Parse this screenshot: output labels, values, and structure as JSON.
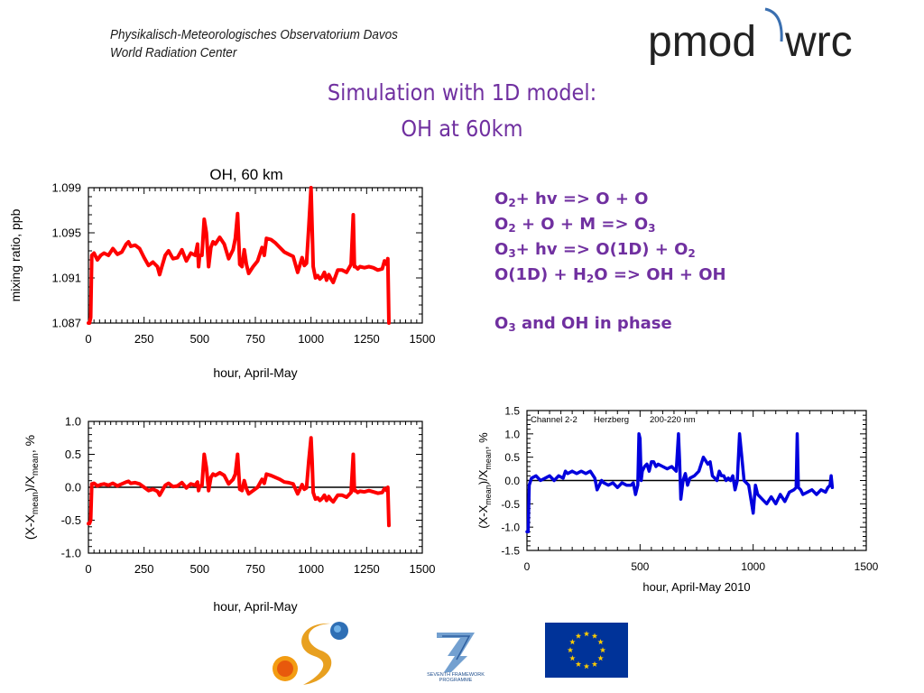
{
  "header": {
    "institution_line1": "Physikalisch-Meteorologisches Observatorium Davos",
    "institution_line2": "World Radiation Center",
    "logo_text_left": "pmod",
    "logo_text_right": "wrc"
  },
  "title": {
    "line1": "Simulation with 1D model:",
    "line2": "OH at 60km"
  },
  "reactions": [
    {
      "parts": [
        [
          "O",
          ""
        ],
        [
          "2",
          "sub"
        ],
        [
          "+ hv  => O + O",
          ""
        ]
      ]
    },
    {
      "parts": [
        [
          "O",
          ""
        ],
        [
          "2",
          "sub"
        ],
        [
          " + O + M => O",
          ""
        ],
        [
          "3",
          "sub"
        ]
      ]
    },
    {
      "parts": [
        [
          "O",
          ""
        ],
        [
          "3",
          "sub"
        ],
        [
          "+ hv  => O(1D) + O",
          ""
        ],
        [
          "2",
          "sub"
        ]
      ]
    },
    {
      "parts": [
        [
          "O(1D) + H",
          ""
        ],
        [
          "2",
          "sub"
        ],
        [
          "O => OH + OH",
          ""
        ]
      ]
    }
  ],
  "phase_note": {
    "parts": [
      [
        "O",
        ""
      ],
      [
        "3",
        "sub"
      ],
      [
        "  and OH in phase",
        ""
      ]
    ]
  },
  "colors": {
    "purple": "#7030a0",
    "oh_line": "#ff0000",
    "o3_line": "#0000dd",
    "eu_blue": "#003399",
    "eu_stars": "#ffcc00"
  },
  "logos": {
    "fp7_line1": "SEVENTH FRAMEWORK",
    "fp7_line2": "PROGRAMME"
  },
  "chart_data": [
    {
      "type": "line",
      "title": "OH, 60 km",
      "xlabel": "hour, April-May",
      "ylabel": "mixing ratio, ppb",
      "xlim": [
        0,
        1500
      ],
      "ylim": [
        1.087,
        1.099
      ],
      "xticks": [
        0,
        250,
        500,
        750,
        1000,
        1250,
        1500
      ],
      "xtick_labels": [
        "0",
        "250",
        "500",
        "750",
        "1000",
        "1250",
        "1500"
      ],
      "yticks": [
        1.087,
        1.091,
        1.095,
        1.099
      ],
      "ytick_labels": [
        "1.087",
        "1.091",
        "1.095",
        "1.099"
      ],
      "reference_line": null,
      "series": [
        {
          "color": "#ff0000",
          "x": [
            0,
            5,
            10,
            15,
            25,
            40,
            55,
            70,
            90,
            110,
            130,
            150,
            170,
            180,
            190,
            210,
            230,
            250,
            270,
            290,
            310,
            320,
            330,
            345,
            360,
            380,
            400,
            420,
            440,
            460,
            480,
            490,
            495,
            500,
            510,
            520,
            530,
            540,
            550,
            560,
            570,
            590,
            610,
            630,
            650,
            660,
            670,
            680,
            690,
            700,
            710,
            720,
            740,
            760,
            780,
            790,
            800,
            820,
            840,
            860,
            880,
            900,
            920,
            940,
            960,
            970,
            980,
            990,
            1000,
            1005,
            1010,
            1020,
            1030,
            1040,
            1050,
            1060,
            1070,
            1080,
            1090,
            1100,
            1120,
            1140,
            1160,
            1180,
            1190,
            1195,
            1200,
            1210,
            1220,
            1240,
            1260,
            1280,
            1300,
            1320,
            1330,
            1340,
            1345,
            1350
          ],
          "y": [
            1.087,
            1.087,
            1.0875,
            1.093,
            1.0932,
            1.0926,
            1.093,
            1.0932,
            1.093,
            1.0936,
            1.0931,
            1.0933,
            1.094,
            1.0942,
            1.0938,
            1.0939,
            1.0936,
            1.0928,
            1.0921,
            1.0924,
            1.092,
            1.0913,
            1.092,
            1.093,
            1.0934,
            1.0927,
            1.0928,
            1.0935,
            1.0925,
            1.0932,
            1.093,
            1.094,
            1.092,
            1.093,
            1.093,
            1.0962,
            1.095,
            1.092,
            1.0937,
            1.0942,
            1.094,
            1.0946,
            1.094,
            1.0927,
            1.0935,
            1.0945,
            1.0967,
            1.0922,
            1.092,
            1.0935,
            1.0922,
            1.0914,
            1.092,
            1.0925,
            1.0937,
            1.093,
            1.0945,
            1.0944,
            1.0941,
            1.0937,
            1.0933,
            1.0931,
            1.0929,
            1.0915,
            1.0928,
            1.0921,
            1.0923,
            1.0955,
            1.099,
            1.0955,
            1.092,
            1.091,
            1.0912,
            1.0909,
            1.0911,
            1.0915,
            1.0908,
            1.0913,
            1.0909,
            1.0906,
            1.0917,
            1.0917,
            1.0915,
            1.0922,
            1.0966,
            1.092,
            1.092,
            1.0918,
            1.092,
            1.0919,
            1.092,
            1.0919,
            1.0917,
            1.0918,
            1.0925,
            1.0922,
            1.0927,
            1.087
          ]
        }
      ]
    },
    {
      "type": "line",
      "title": "",
      "xlabel": "hour, April-May",
      "ylabel": "(X-X_mean)/X_mean, %",
      "xlim": [
        0,
        1500
      ],
      "ylim": [
        -1.0,
        1.0
      ],
      "xticks": [
        0,
        250,
        500,
        750,
        1000,
        1250,
        1500
      ],
      "xtick_labels": [
        "0",
        "250",
        "500",
        "750",
        "1000",
        "1250",
        "1500"
      ],
      "yticks": [
        -1.0,
        -0.5,
        0.0,
        0.5,
        1.0
      ],
      "ytick_labels": [
        "-1.0",
        "-0.5",
        "0.0",
        "0.5",
        "1.0"
      ],
      "reference_line": {
        "y": 0,
        "x_from": 0,
        "x_to": 1350
      },
      "series": [
        {
          "color": "#ff0000",
          "x": [
            0,
            5,
            10,
            15,
            25,
            40,
            55,
            70,
            90,
            110,
            130,
            150,
            170,
            180,
            190,
            210,
            230,
            250,
            270,
            290,
            310,
            320,
            330,
            345,
            360,
            380,
            400,
            420,
            440,
            460,
            480,
            490,
            495,
            500,
            510,
            520,
            530,
            540,
            550,
            560,
            570,
            590,
            610,
            630,
            650,
            660,
            670,
            680,
            690,
            700,
            710,
            720,
            740,
            760,
            780,
            790,
            800,
            820,
            840,
            860,
            880,
            900,
            920,
            940,
            960,
            970,
            980,
            990,
            1000,
            1005,
            1010,
            1020,
            1030,
            1040,
            1050,
            1060,
            1070,
            1080,
            1090,
            1100,
            1120,
            1140,
            1160,
            1180,
            1190,
            1195,
            1200,
            1210,
            1220,
            1240,
            1260,
            1280,
            1300,
            1320,
            1330,
            1340,
            1345,
            1350
          ],
          "y": [
            -0.55,
            -0.55,
            -0.5,
            0.05,
            0.06,
            0.02,
            0.04,
            0.05,
            0.03,
            0.06,
            0.02,
            0.05,
            0.08,
            0.09,
            0.06,
            0.07,
            0.05,
            0.0,
            -0.05,
            -0.03,
            -0.06,
            -0.12,
            -0.06,
            0.03,
            0.06,
            0.01,
            0.02,
            0.07,
            -0.01,
            0.05,
            0.03,
            0.08,
            -0.05,
            0.02,
            0.02,
            0.5,
            0.3,
            -0.05,
            0.15,
            0.2,
            0.18,
            0.22,
            0.18,
            0.05,
            0.12,
            0.2,
            0.5,
            -0.03,
            -0.05,
            0.1,
            -0.02,
            -0.1,
            -0.05,
            0.0,
            0.12,
            0.06,
            0.2,
            0.18,
            0.15,
            0.12,
            0.08,
            0.07,
            0.05,
            -0.1,
            0.04,
            -0.03,
            -0.01,
            0.4,
            0.75,
            0.4,
            -0.08,
            -0.18,
            -0.16,
            -0.2,
            -0.17,
            -0.12,
            -0.2,
            -0.14,
            -0.19,
            -0.22,
            -0.12,
            -0.12,
            -0.15,
            -0.08,
            0.5,
            -0.05,
            -0.05,
            -0.08,
            -0.06,
            -0.07,
            -0.05,
            -0.07,
            -0.09,
            -0.08,
            -0.02,
            -0.05,
            0.0,
            -0.58
          ]
        }
      ]
    },
    {
      "type": "line",
      "title": "",
      "annotations": [
        "Channel 2-2",
        "Herzberg",
        "200-220 nm"
      ],
      "xlabel": "hour, April-May 2010",
      "ylabel": "(X-X_mean)/X_mean, %",
      "xlim": [
        0,
        1500
      ],
      "ylim": [
        -1.5,
        1.5
      ],
      "xticks": [
        0,
        500,
        1000,
        1500
      ],
      "xtick_labels": [
        "0",
        "500",
        "1000",
        "1500"
      ],
      "yticks": [
        -1.5,
        -1.0,
        -0.5,
        0.0,
        0.5,
        1.0,
        1.5
      ],
      "ytick_labels": [
        "-1.5",
        "-1.0",
        "-0.5",
        "0.0",
        "0.5",
        "1.0",
        "1.5"
      ],
      "reference_line": {
        "y": 0,
        "x_from": 0,
        "x_to": 1350
      },
      "series": [
        {
          "color": "#0000dd",
          "x": [
            0,
            5,
            10,
            20,
            40,
            60,
            80,
            100,
            120,
            140,
            160,
            170,
            180,
            200,
            220,
            240,
            260,
            280,
            300,
            310,
            320,
            330,
            340,
            360,
            380,
            400,
            420,
            440,
            460,
            470,
            480,
            490,
            495,
            500,
            505,
            510,
            520,
            530,
            540,
            550,
            560,
            570,
            580,
            600,
            620,
            640,
            660,
            670,
            675,
            680,
            690,
            700,
            710,
            720,
            740,
            760,
            780,
            800,
            810,
            820,
            830,
            840,
            850,
            860,
            870,
            880,
            890,
            900,
            910,
            920,
            930,
            940,
            960,
            980,
            990,
            1000,
            1010,
            1020,
            1040,
            1060,
            1080,
            1100,
            1120,
            1140,
            1160,
            1180,
            1190,
            1195,
            1200,
            1210,
            1220,
            1240,
            1260,
            1280,
            1300,
            1320,
            1330,
            1340,
            1345,
            1350
          ],
          "y": [
            -1.1,
            -1.1,
            -0.1,
            0.05,
            0.1,
            0.0,
            0.05,
            0.1,
            0.0,
            0.1,
            0.05,
            0.2,
            0.15,
            0.2,
            0.15,
            0.2,
            0.15,
            0.2,
            0.05,
            -0.2,
            -0.1,
            0.0,
            -0.05,
            -0.1,
            -0.05,
            -0.15,
            -0.05,
            -0.1,
            -0.1,
            -0.05,
            -0.3,
            -0.1,
            1.0,
            0.9,
            0.0,
            0.2,
            0.3,
            0.35,
            0.2,
            0.4,
            0.4,
            0.3,
            0.35,
            0.3,
            0.25,
            0.3,
            0.2,
            1.0,
            0.4,
            -0.4,
            0.0,
            0.15,
            -0.1,
            0.05,
            0.1,
            0.2,
            0.5,
            0.35,
            0.4,
            0.1,
            0.05,
            0.0,
            0.2,
            0.1,
            0.1,
            0.0,
            0.05,
            0.0,
            0.1,
            -0.2,
            0.0,
            1.0,
            0.0,
            -0.1,
            -0.4,
            -0.7,
            -0.1,
            -0.3,
            -0.4,
            -0.5,
            -0.35,
            -0.5,
            -0.3,
            -0.45,
            -0.25,
            -0.2,
            -0.15,
            1.0,
            -0.15,
            -0.2,
            -0.3,
            -0.25,
            -0.2,
            -0.3,
            -0.2,
            -0.25,
            -0.15,
            -0.1,
            0.1,
            -0.15
          ]
        }
      ]
    }
  ]
}
